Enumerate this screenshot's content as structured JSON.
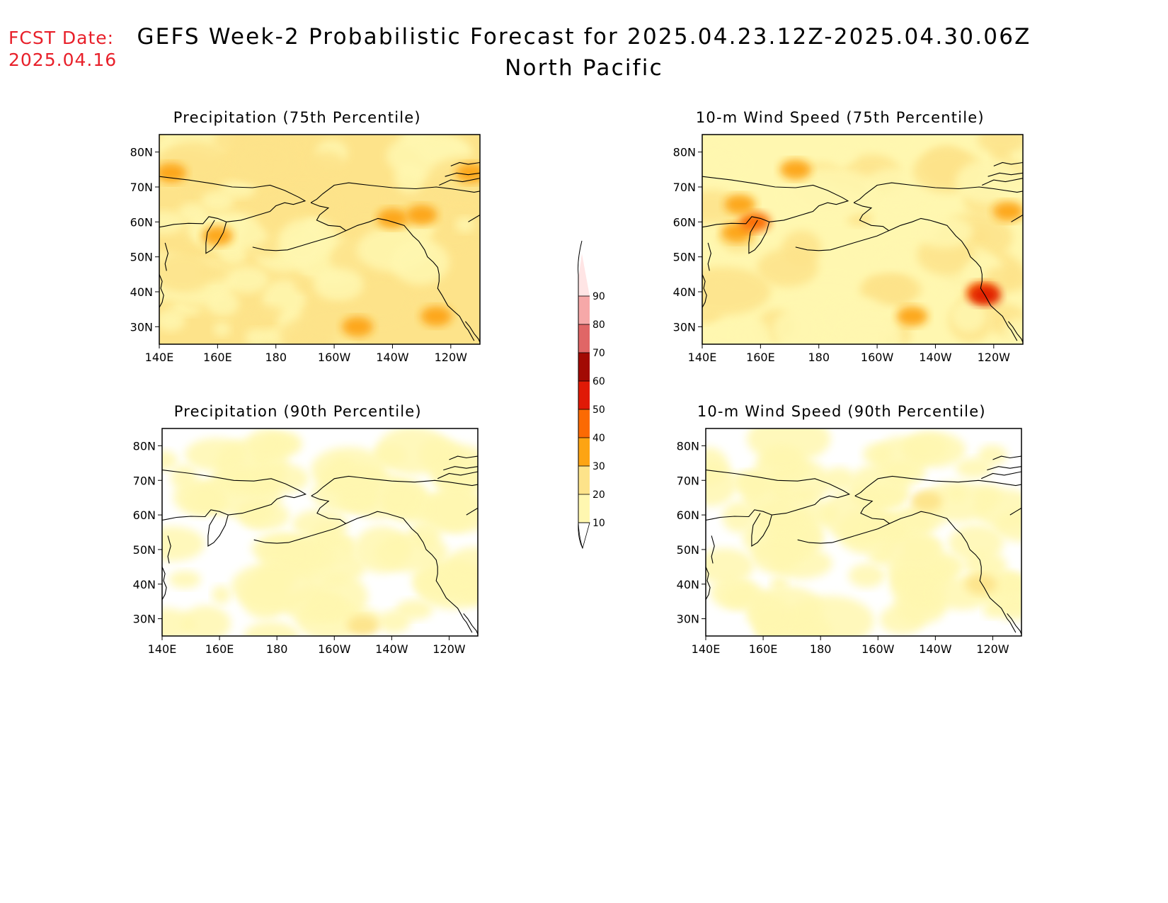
{
  "forecast_date": {
    "label": "FCST Date:",
    "value": "2025.04.16"
  },
  "title": {
    "line1": "GEFS Week-2 Probabilistic Forecast for 2025.04.23.12Z-2025.04.30.06Z",
    "line2": "North Pacific"
  },
  "colors": {
    "land_outline": "#000000",
    "background": "#ffffff",
    "fcst_text": "#e8202a"
  },
  "colorbar": {
    "levels": [
      10,
      20,
      30,
      40,
      50,
      60,
      70,
      80,
      90
    ],
    "colors": [
      "#fff7b0",
      "#fde38a",
      "#fda413",
      "#fb6a03",
      "#e01a06",
      "#a20a04",
      "#e06666",
      "#f6a8a8",
      "#ffe5e5"
    ],
    "tick_labels": [
      "10",
      "20",
      "30",
      "40",
      "50",
      "60",
      "70",
      "80",
      "90"
    ]
  },
  "chart_data": [
    {
      "type": "heatmap",
      "title": "Precipitation (75th Percentile)",
      "x_tick_labels": [
        "140E",
        "160E",
        "180",
        "160W",
        "140W",
        "120W"
      ],
      "y_tick_labels": [
        "30N",
        "40N",
        "50N",
        "60N",
        "70N",
        "80N"
      ],
      "lon_range": [
        140,
        250
      ],
      "lat_range": [
        25,
        85
      ],
      "base_level": 20,
      "dominant_levels": [
        10,
        20
      ],
      "hotspots": [
        {
          "lon": 208,
          "lat": 30,
          "level": 30
        },
        {
          "lon": 235,
          "lat": 33,
          "level": 30
        },
        {
          "lon": 144,
          "lat": 74,
          "level": 30
        },
        {
          "lon": 160,
          "lat": 56,
          "level": 30
        },
        {
          "lon": 220,
          "lat": 61,
          "level": 30
        },
        {
          "lon": 230,
          "lat": 62,
          "level": 30
        },
        {
          "lon": 247,
          "lat": 74,
          "level": 30
        }
      ]
    },
    {
      "type": "heatmap",
      "title": "10-m Wind Speed (75th Percentile)",
      "x_tick_labels": [
        "140E",
        "160E",
        "180",
        "160W",
        "140W",
        "120W"
      ],
      "y_tick_labels": [
        "30N",
        "40N",
        "50N",
        "60N",
        "70N",
        "80N"
      ],
      "lon_range": [
        140,
        250
      ],
      "lat_range": [
        25,
        85
      ],
      "base_level": 10,
      "dominant_levels": [
        10,
        20
      ],
      "hotspots": [
        {
          "lon": 152,
          "lat": 57,
          "level": 30
        },
        {
          "lon": 158,
          "lat": 60,
          "level": 40
        },
        {
          "lon": 172,
          "lat": 75,
          "level": 30
        },
        {
          "lon": 153,
          "lat": 65,
          "level": 30
        },
        {
          "lon": 236,
          "lat": 40,
          "level": 40
        },
        {
          "lon": 237,
          "lat": 39,
          "level": 50
        },
        {
          "lon": 212,
          "lat": 33,
          "level": 30
        },
        {
          "lon": 245,
          "lat": 63,
          "level": 30
        }
      ]
    },
    {
      "type": "heatmap",
      "title": "Precipitation (90th Percentile)",
      "x_tick_labels": [
        "140E",
        "160E",
        "180",
        "160W",
        "140W",
        "120W"
      ],
      "y_tick_labels": [
        "30N",
        "40N",
        "50N",
        "60N",
        "70N",
        "80N"
      ],
      "lon_range": [
        140,
        250
      ],
      "lat_range": [
        25,
        85
      ],
      "base_level": 0,
      "dominant_levels": [
        10
      ],
      "hotspots": [
        {
          "lon": 210,
          "lat": 28,
          "level": 20
        }
      ]
    },
    {
      "type": "heatmap",
      "title": "10-m Wind Speed (90th Percentile)",
      "x_tick_labels": [
        "140E",
        "160E",
        "180",
        "160W",
        "140W",
        "120W"
      ],
      "y_tick_labels": [
        "30N",
        "40N",
        "50N",
        "60N",
        "70N",
        "80N"
      ],
      "lon_range": [
        140,
        250
      ],
      "lat_range": [
        25,
        85
      ],
      "base_level": 0,
      "dominant_levels": [
        10
      ],
      "hotspots": [
        {
          "lon": 236,
          "lat": 40,
          "level": 20
        },
        {
          "lon": 217,
          "lat": 64,
          "level": 20
        }
      ]
    }
  ]
}
